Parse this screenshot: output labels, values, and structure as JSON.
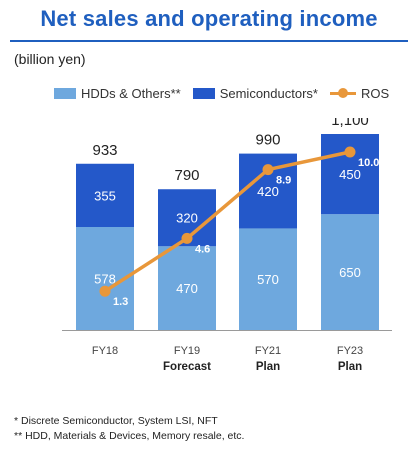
{
  "title": "Net sales and operating income",
  "unit_label": "(billion yen)",
  "legend": {
    "hdd": "HDDs & Others**",
    "semi": "Semiconductors*",
    "ros": "ROS"
  },
  "colors": {
    "title": "#1f5fbf",
    "hdd": "#6ea8de",
    "semi": "#2458c9",
    "ros": "#e8973a"
  },
  "chart_data": {
    "type": "bar",
    "stacked": true,
    "categories": [
      "FY18",
      "FY19",
      "FY21",
      "FY23"
    ],
    "category_sublabels": [
      "",
      "Forecast",
      "Plan",
      "Plan"
    ],
    "series": [
      {
        "name": "HDDs & Others**",
        "values": [
          578,
          470,
          570,
          650
        ]
      },
      {
        "name": "Semiconductors*",
        "values": [
          355,
          320,
          420,
          450
        ]
      }
    ],
    "totals": [
      "933",
      "790",
      "990",
      "1,100"
    ],
    "total_values": [
      933,
      790,
      990,
      1100
    ],
    "line_series": {
      "name": "ROS",
      "values": [
        1.3,
        4.6,
        8.9,
        10.0
      ],
      "labels": [
        "1.3",
        "4.6",
        "8.9",
        "10.0"
      ]
    },
    "ylim": [
      0,
      1100
    ],
    "line_ylim": [
      0,
      10.0
    ],
    "legend_position": "top",
    "grid": false
  },
  "footnotes": [
    "* Discrete Semiconductor, System LSI, NFT",
    "** HDD, Materials & Devices, Memory resale, etc."
  ]
}
